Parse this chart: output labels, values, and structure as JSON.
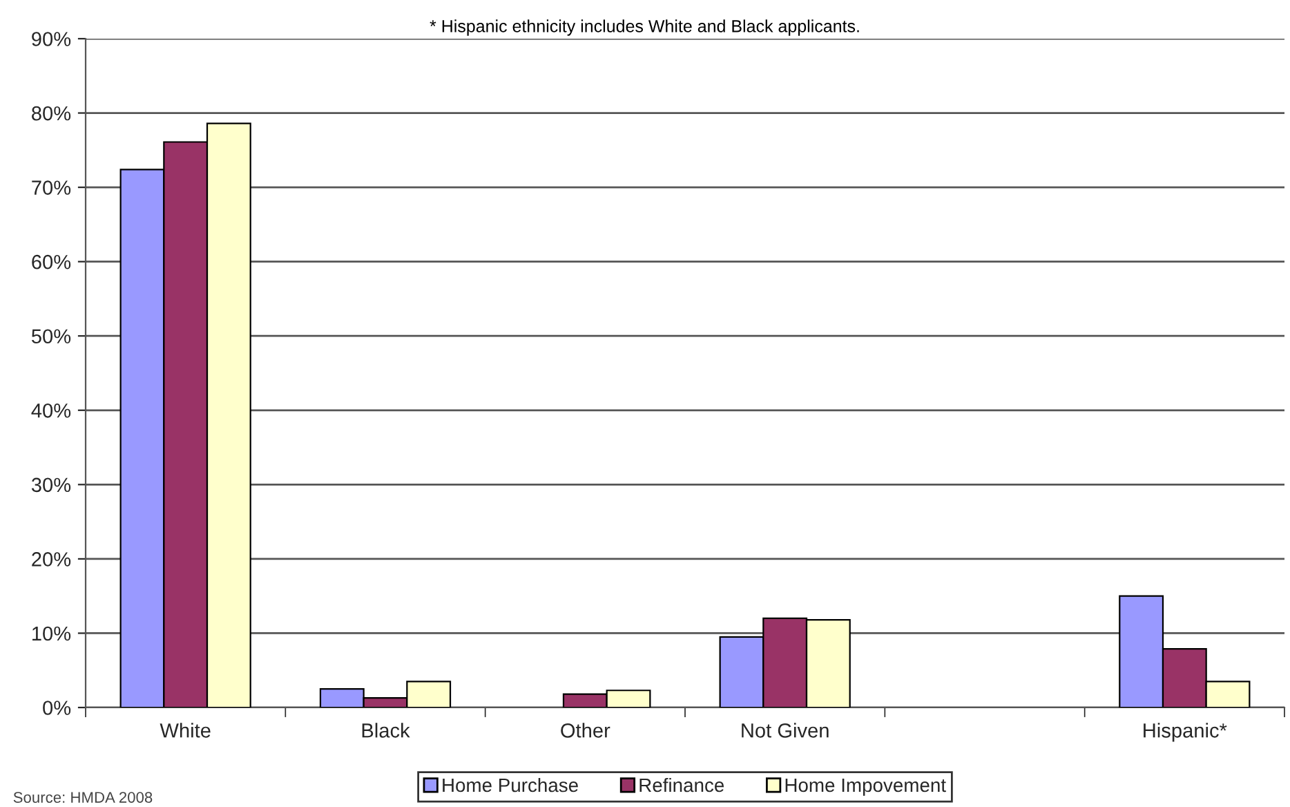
{
  "chart_data": {
    "type": "bar",
    "categories": [
      "White",
      "Black",
      "Other",
      "Not Given",
      null,
      "Hispanic*"
    ],
    "series": [
      {
        "name": "Home Purchase",
        "color": "#9999ff",
        "values": [
          72.4,
          2.5,
          null,
          9.5,
          null,
          15.0
        ]
      },
      {
        "name": "Refinance",
        "color": "#993366",
        "values": [
          76.1,
          1.3,
          1.8,
          12.0,
          null,
          7.9
        ]
      },
      {
        "name": "Home Impovement",
        "color": "#ffffcc",
        "values": [
          78.6,
          3.5,
          2.3,
          11.8,
          null,
          3.5
        ]
      }
    ],
    "ylim": [
      0,
      90
    ],
    "yticks": [
      {
        "value": 0,
        "label": "0%"
      },
      {
        "value": 10,
        "label": "10%"
      },
      {
        "value": 20,
        "label": "20%"
      },
      {
        "value": 30,
        "label": "30%"
      },
      {
        "value": 40,
        "label": "40%"
      },
      {
        "value": 50,
        "label": "50%"
      },
      {
        "value": 60,
        "label": "60%"
      },
      {
        "value": 70,
        "label": "70%"
      },
      {
        "value": 80,
        "label": "80%"
      },
      {
        "value": 90,
        "label": "90%"
      }
    ],
    "grid": "y",
    "legend": "bottom",
    "annotations": [
      "* Hispanic ethnicity includes White and Black applicants.",
      "Source: HMDA 2008"
    ]
  }
}
